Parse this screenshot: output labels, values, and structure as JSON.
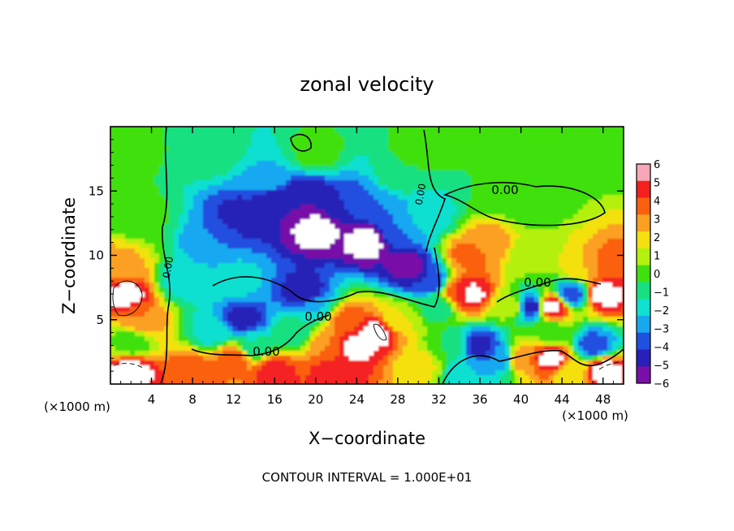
{
  "chart_data": {
    "type": "heatmap",
    "title": "zonal velocity",
    "xlabel": "X−coordinate",
    "ylabel": "Z−coordinate",
    "x_unit_left": "(×1000 m)",
    "x_unit_right": "(×1000 m)",
    "footer": "CONTOUR INTERVAL = 1.000E+01",
    "xlim": [
      0,
      50
    ],
    "ylim": [
      0,
      20
    ],
    "x_ticks": [
      4,
      8,
      12,
      16,
      20,
      24,
      28,
      32,
      36,
      40,
      44,
      48
    ],
    "y_ticks": [
      5,
      10,
      15
    ],
    "contour_labels": [
      "0.00",
      "0.00",
      "0.00",
      "0.00",
      "0.00",
      "0.00"
    ],
    "colorbar": {
      "min": -6,
      "max": 6,
      "tick_labels": [
        "6",
        "5",
        "4",
        "3",
        "2",
        "1",
        "0",
        "−1",
        "−2",
        "−3",
        "−4",
        "−5",
        "−6"
      ],
      "colors": [
        "#f7a8b8",
        "#f42020",
        "#fa6010",
        "#fba020",
        "#f4e010",
        "#b4f010",
        "#40e010",
        "#18e080",
        "#10e0d0",
        "#18a8f0",
        "#2050e0",
        "#2820b8",
        "#7810a8"
      ]
    },
    "regions": [
      {
        "x": 2,
        "z": 18,
        "u": 0.2
      },
      {
        "x": 10,
        "z": 18,
        "u": -0.2
      },
      {
        "x": 20,
        "z": 18,
        "u": 0.4
      },
      {
        "x": 30,
        "z": 18,
        "u": 0.5
      },
      {
        "x": 40,
        "z": 18,
        "u": 0.6
      },
      {
        "x": 48,
        "z": 18,
        "u": 0.4
      },
      {
        "x": 3,
        "z": 13,
        "u": 0.3
      },
      {
        "x": 1,
        "z": 9,
        "u": 3.5
      },
      {
        "x": 1.5,
        "z": 7,
        "u": 6.5
      },
      {
        "x": 3,
        "z": 5,
        "u": 4.0
      },
      {
        "x": 2,
        "z": 3.2,
        "u": 0.3
      },
      {
        "x": 2,
        "z": 1,
        "u": 6.5
      },
      {
        "x": 7,
        "z": 8,
        "u": -1.5
      },
      {
        "x": 10,
        "z": 11,
        "u": -3.0
      },
      {
        "x": 13,
        "z": 13,
        "u": -4.5
      },
      {
        "x": 16,
        "z": 14,
        "u": -5.0
      },
      {
        "x": 19,
        "z": 14.5,
        "u": -5.0
      },
      {
        "x": 23,
        "z": 14,
        "u": -4.0
      },
      {
        "x": 26,
        "z": 14,
        "u": -3.0
      },
      {
        "x": 28,
        "z": 12,
        "u": -3.0
      },
      {
        "x": 15,
        "z": 16,
        "u": -2.0
      },
      {
        "x": 20,
        "z": 12,
        "u": -6.5
      },
      {
        "x": 25,
        "z": 11,
        "u": -6.5
      },
      {
        "x": 29,
        "z": 9,
        "u": -5.5
      },
      {
        "x": 31,
        "z": 8,
        "u": -4.0
      },
      {
        "x": 12,
        "z": 8,
        "u": -1.5
      },
      {
        "x": 13,
        "z": 5,
        "u": -4.5
      },
      {
        "x": 14,
        "z": 3,
        "u": -1.0
      },
      {
        "x": 10,
        "z": 4,
        "u": -1.5
      },
      {
        "x": 19,
        "z": 7,
        "u": -5.0
      },
      {
        "x": 20,
        "z": 6,
        "u": -2.0
      },
      {
        "x": 18,
        "z": 4,
        "u": -0.5
      },
      {
        "x": 23,
        "z": 5,
        "u": 4.5
      },
      {
        "x": 24,
        "z": 3,
        "u": 6.5
      },
      {
        "x": 26,
        "z": 4,
        "u": 6.5
      },
      {
        "x": 28,
        "z": 5,
        "u": 2.0
      },
      {
        "x": 21,
        "z": 3,
        "u": 4.0
      },
      {
        "x": 12,
        "z": 2,
        "u": 4.5
      },
      {
        "x": 16,
        "z": 1,
        "u": 5.5
      },
      {
        "x": 8,
        "z": 1,
        "u": 5.0
      },
      {
        "x": 22,
        "z": 1,
        "u": 6.0
      },
      {
        "x": 30,
        "z": 1.5,
        "u": 2.5
      },
      {
        "x": 32,
        "z": 6,
        "u": -0.5
      },
      {
        "x": 33,
        "z": 3,
        "u": 0.0
      },
      {
        "x": 35,
        "z": 10,
        "u": 4.5
      },
      {
        "x": 37,
        "z": 11,
        "u": 3.5
      },
      {
        "x": 35,
        "z": 7,
        "u": 6.5
      },
      {
        "x": 34,
        "z": 7,
        "u": 5.0
      },
      {
        "x": 36,
        "z": 3,
        "u": -4.5
      },
      {
        "x": 38,
        "z": 2,
        "u": -3.0
      },
      {
        "x": 35,
        "z": 1,
        "u": -2.0
      },
      {
        "x": 39,
        "z": 6,
        "u": 1.5
      },
      {
        "x": 41,
        "z": 10,
        "u": 1.0
      },
      {
        "x": 41,
        "z": 14,
        "u": 0.2
      },
      {
        "x": 38,
        "z": 15,
        "u": 0.0
      },
      {
        "x": 43,
        "z": 6,
        "u": 6.5
      },
      {
        "x": 41,
        "z": 6,
        "u": -4.5
      },
      {
        "x": 45,
        "z": 7,
        "u": -3.5
      },
      {
        "x": 43,
        "z": 4,
        "u": 0.5
      },
      {
        "x": 43,
        "z": 2,
        "u": 6.5
      },
      {
        "x": 40,
        "z": 2,
        "u": 4.0
      },
      {
        "x": 46,
        "z": 9,
        "u": 3.0
      },
      {
        "x": 48,
        "z": 7,
        "u": 6.5
      },
      {
        "x": 49,
        "z": 9,
        "u": 5.0
      },
      {
        "x": 47,
        "z": 3,
        "u": -3.5
      },
      {
        "x": 48,
        "z": 1,
        "u": 6.5
      },
      {
        "x": 45,
        "z": 1,
        "u": 2.0
      },
      {
        "x": 31,
        "z": 13,
        "u": -1.5
      },
      {
        "x": 28,
        "z": 16,
        "u": -0.5
      }
    ]
  }
}
